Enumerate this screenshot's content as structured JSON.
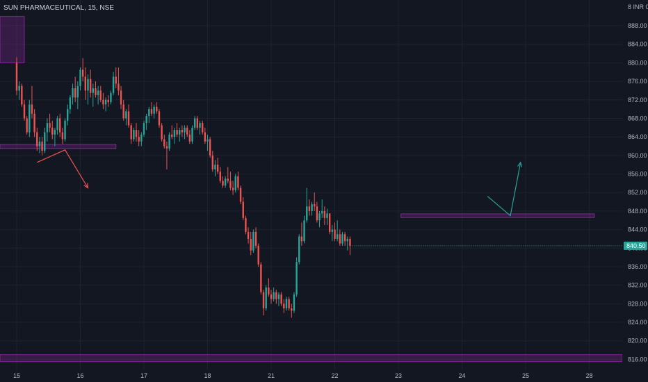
{
  "header": {
    "title": "SUN PHARMACEUTICAL, 15, NSE"
  },
  "axis": {
    "unit_label": "INR"
  },
  "colors": {
    "background": "#131722",
    "up": "#26a69a",
    "down": "#ef5350",
    "zone_fill": "#9c27b0",
    "grid": "#1e222d",
    "price_badge": "#26a69a"
  },
  "chart_data": {
    "type": "candlestick",
    "ylim": [
      814,
      890
    ],
    "y_ticks": [
      816,
      820,
      824,
      828,
      832,
      836,
      840,
      844,
      848,
      852,
      856,
      860,
      864,
      868,
      872,
      876,
      880,
      884,
      888
    ],
    "y_tick_labels": [
      "816.00",
      "820.00",
      "824.00",
      "828.00",
      "832.00",
      "836.00",
      "840.00",
      "844.00",
      "848.00",
      "852.00",
      "856.00",
      "860.00",
      "864.00",
      "868.00",
      "872.00",
      "876.00",
      "880.00",
      "884.00",
      "888.00"
    ],
    "x_tick_labels": [
      "15",
      "16",
      "17",
      "18",
      "21",
      "22",
      "23",
      "24",
      "25",
      "28"
    ],
    "x_tick_index": [
      0,
      25,
      50,
      75,
      100,
      125,
      150,
      175,
      200,
      225
    ],
    "last_price": "840.50",
    "candles": [
      [
        880.0,
        881.2,
        873.0,
        874.0
      ],
      [
        874.0,
        876.0,
        872.0,
        875.0
      ],
      [
        875.0,
        875.5,
        870.5,
        871.0
      ],
      [
        871.0,
        872.0,
        867.5,
        868.0
      ],
      [
        868.0,
        868.5,
        864.5,
        865.0
      ],
      [
        865.0,
        872.0,
        864.0,
        871.0
      ],
      [
        871.0,
        875.0,
        868.0,
        869.0
      ],
      [
        869.0,
        870.0,
        864.0,
        865.0
      ],
      [
        865.0,
        866.0,
        861.0,
        862.0
      ],
      [
        862.0,
        864.0,
        860.5,
        863.0
      ],
      [
        863.0,
        864.0,
        860.0,
        861.0
      ],
      [
        861.0,
        866.0,
        860.5,
        865.0
      ],
      [
        865.0,
        868.0,
        863.0,
        867.0
      ],
      [
        867.0,
        869.0,
        865.0,
        866.0
      ],
      [
        866.0,
        867.5,
        863.5,
        864.5
      ],
      [
        864.5,
        866.0,
        862.0,
        865.5
      ],
      [
        865.5,
        868.5,
        864.5,
        868.0
      ],
      [
        868.0,
        869.0,
        864.0,
        865.0
      ],
      [
        865.0,
        866.0,
        862.5,
        863.5
      ],
      [
        863.5,
        868.0,
        863.0,
        867.5
      ],
      [
        867.5,
        871.0,
        866.5,
        870.0
      ],
      [
        870.0,
        873.0,
        869.0,
        872.5
      ],
      [
        872.5,
        875.5,
        871.0,
        874.5
      ],
      [
        874.5,
        877.0,
        871.5,
        872.5
      ],
      [
        872.5,
        876.0,
        870.0,
        875.0
      ],
      [
        875.0,
        879.0,
        874.0,
        878.5
      ],
      [
        878.5,
        881.0,
        876.0,
        877.0
      ],
      [
        877.0,
        879.0,
        872.0,
        874.0
      ],
      [
        874.0,
        877.5,
        871.0,
        876.5
      ],
      [
        876.5,
        878.5,
        872.5,
        873.5
      ],
      [
        873.5,
        875.5,
        870.5,
        874.5
      ],
      [
        874.5,
        876.0,
        872.5,
        873.0
      ],
      [
        873.0,
        875.0,
        871.0,
        874.0
      ],
      [
        874.0,
        875.0,
        871.5,
        872.0
      ],
      [
        872.0,
        873.5,
        870.0,
        871.0
      ],
      [
        871.0,
        872.5,
        869.5,
        872.0
      ],
      [
        872.0,
        873.0,
        870.5,
        871.5
      ],
      [
        871.5,
        874.0,
        871.0,
        873.5
      ],
      [
        873.5,
        878.0,
        873.0,
        877.0
      ],
      [
        877.0,
        879.0,
        874.5,
        875.5
      ],
      [
        875.5,
        879.0,
        873.0,
        874.0
      ],
      [
        874.0,
        875.0,
        870.0,
        871.0
      ],
      [
        871.0,
        872.0,
        867.5,
        868.0
      ],
      [
        868.0,
        870.0,
        866.5,
        869.5
      ],
      [
        869.5,
        871.0,
        866.0,
        866.5
      ],
      [
        866.5,
        867.0,
        862.5,
        863.5
      ],
      [
        863.5,
        866.0,
        863.0,
        865.5
      ],
      [
        865.5,
        867.0,
        863.0,
        864.0
      ],
      [
        864.0,
        865.5,
        862.0,
        863.0
      ],
      [
        863.0,
        865.0,
        862.0,
        864.5
      ],
      [
        864.5,
        867.5,
        864.0,
        867.0
      ],
      [
        867.0,
        869.0,
        865.5,
        868.5
      ],
      [
        868.5,
        870.5,
        867.0,
        870.0
      ],
      [
        870.0,
        871.5,
        868.5,
        869.0
      ],
      [
        869.0,
        871.0,
        868.0,
        870.5
      ],
      [
        870.5,
        871.5,
        869.0,
        869.5
      ],
      [
        869.5,
        870.0,
        866.0,
        866.5
      ],
      [
        866.5,
        867.0,
        863.0,
        863.5
      ],
      [
        863.5,
        864.5,
        861.5,
        862.0
      ],
      [
        862.0,
        863.0,
        857.0,
        861.5
      ],
      [
        861.5,
        865.0,
        861.0,
        864.5
      ],
      [
        864.5,
        866.5,
        863.5,
        864.0
      ],
      [
        864.0,
        866.0,
        862.5,
        865.5
      ],
      [
        865.5,
        867.0,
        864.0,
        864.5
      ],
      [
        864.5,
        866.0,
        863.0,
        865.5
      ],
      [
        865.5,
        866.5,
        864.0,
        865.0
      ],
      [
        865.0,
        866.5,
        863.5,
        866.0
      ],
      [
        866.0,
        866.5,
        864.0,
        864.5
      ],
      [
        864.5,
        865.5,
        862.5,
        863.0
      ],
      [
        863.0,
        866.5,
        862.5,
        866.0
      ],
      [
        866.0,
        868.5,
        865.5,
        868.0
      ],
      [
        868.0,
        868.5,
        865.5,
        866.0
      ],
      [
        866.0,
        867.5,
        864.5,
        867.0
      ],
      [
        867.0,
        867.5,
        864.5,
        865.0
      ],
      [
        865.0,
        866.0,
        862.5,
        863.0
      ],
      [
        863.0,
        864.5,
        861.0,
        863.5
      ],
      [
        863.5,
        864.0,
        859.5,
        860.0
      ],
      [
        860.0,
        861.0,
        856.5,
        857.0
      ],
      [
        857.0,
        859.0,
        855.5,
        858.0
      ],
      [
        858.0,
        859.5,
        856.0,
        856.5
      ],
      [
        856.5,
        857.5,
        854.0,
        854.5
      ],
      [
        854.5,
        855.5,
        853.0,
        853.5
      ],
      [
        853.5,
        855.5,
        853.0,
        855.0
      ],
      [
        855.0,
        857.5,
        854.0,
        854.5
      ],
      [
        854.5,
        856.5,
        852.5,
        853.0
      ],
      [
        853.0,
        854.5,
        851.5,
        852.5
      ],
      [
        852.5,
        856.0,
        852.0,
        855.5
      ],
      [
        855.5,
        856.5,
        852.5,
        853.0
      ],
      [
        853.0,
        853.5,
        849.5,
        850.0
      ],
      [
        850.0,
        851.0,
        846.0,
        846.5
      ],
      [
        846.5,
        847.0,
        843.0,
        843.5
      ],
      [
        843.5,
        844.5,
        841.0,
        842.0
      ],
      [
        842.0,
        843.5,
        838.5,
        839.5
      ],
      [
        839.5,
        844.0,
        839.0,
        843.5
      ],
      [
        843.5,
        844.5,
        840.0,
        840.5
      ],
      [
        840.5,
        841.0,
        836.0,
        836.5
      ],
      [
        836.5,
        837.0,
        830.0,
        830.5
      ],
      [
        830.5,
        831.0,
        825.5,
        827.0
      ],
      [
        827.0,
        832.0,
        826.5,
        831.5
      ],
      [
        831.5,
        833.5,
        829.5,
        830.0
      ],
      [
        830.0,
        831.0,
        828.0,
        829.0
      ],
      [
        829.0,
        831.5,
        828.5,
        830.5
      ],
      [
        830.5,
        831.0,
        828.0,
        829.0
      ],
      [
        829.0,
        830.5,
        827.5,
        830.0
      ],
      [
        830.0,
        830.5,
        827.5,
        828.0
      ],
      [
        828.0,
        829.0,
        826.0,
        827.0
      ],
      [
        827.0,
        829.5,
        826.5,
        829.0
      ],
      [
        829.0,
        829.5,
        826.5,
        827.0
      ],
      [
        827.0,
        828.0,
        825.0,
        826.5
      ],
      [
        826.5,
        830.5,
        826.0,
        830.0
      ],
      [
        830.0,
        838.0,
        829.5,
        837.0
      ],
      [
        837.0,
        843.0,
        836.5,
        842.5
      ],
      [
        842.5,
        845.5,
        840.5,
        841.5
      ],
      [
        841.5,
        847.0,
        841.0,
        846.0
      ],
      [
        846.0,
        853.0,
        845.5,
        849.0
      ],
      [
        849.0,
        850.5,
        847.0,
        848.0
      ],
      [
        848.0,
        850.0,
        847.0,
        849.5
      ],
      [
        849.5,
        852.0,
        848.0,
        849.0
      ],
      [
        849.0,
        850.0,
        845.5,
        846.0
      ],
      [
        846.0,
        848.0,
        844.5,
        847.5
      ],
      [
        847.5,
        850.5,
        846.5,
        848.0
      ],
      [
        848.0,
        849.0,
        845.0,
        846.5
      ],
      [
        846.5,
        848.5,
        845.0,
        847.5
      ],
      [
        847.5,
        847.5,
        843.0,
        843.5
      ],
      [
        843.5,
        845.0,
        841.5,
        844.0
      ],
      [
        844.0,
        845.5,
        841.5,
        842.0
      ],
      [
        842.0,
        846.0,
        841.5,
        843.0
      ],
      [
        843.0,
        844.0,
        840.5,
        841.0
      ],
      [
        841.0,
        843.5,
        840.5,
        843.0
      ],
      [
        843.0,
        843.5,
        840.5,
        841.5
      ],
      [
        841.5,
        842.5,
        839.5,
        842.0
      ],
      [
        842.0,
        842.5,
        838.5,
        840.5
      ]
    ],
    "zones": [
      {
        "label": "",
        "x_start": -10,
        "x_end": 3,
        "y_low": 880,
        "y_high": 890
      },
      {
        "label": "",
        "x_start": -10,
        "x_end": 39,
        "y_low": 861.5,
        "y_high": 862.4
      },
      {
        "label": "",
        "x_start": 151,
        "x_end": 227,
        "y_low": 846.6,
        "y_high": 847.4
      },
      {
        "label": "",
        "x_start": -10,
        "x_end": 245,
        "y_low": 815.5,
        "y_high": 817.0
      }
    ],
    "arrows": [
      {
        "color": "#ef5350",
        "points": [
          [
            8,
            858.5
          ],
          [
            19,
            861.2
          ],
          [
            28,
            853
          ]
        ]
      },
      {
        "color": "#26a69a",
        "points": [
          [
            185,
            851.2
          ],
          [
            194,
            847.0
          ],
          [
            198,
            858.5
          ]
        ]
      }
    ]
  }
}
